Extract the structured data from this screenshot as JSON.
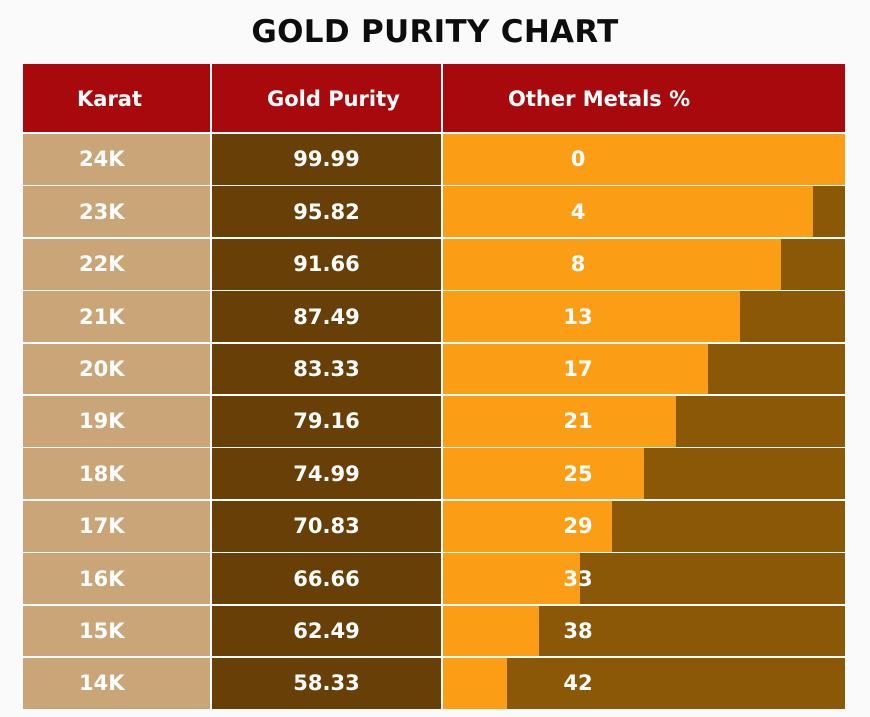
{
  "title": "GOLD PURITY CHART",
  "columns": [
    "Karat",
    "Gold Purity",
    "Other Metals %"
  ],
  "colors": {
    "header": "#a8090d",
    "karat_cell": "#caa577",
    "purity_cell": "#683f06",
    "other_bar": "#fc9e15",
    "other_track": "#8a5806",
    "text": "#ffffff"
  },
  "chart_data": {
    "type": "table",
    "title": "GOLD PURITY CHART",
    "columns": [
      "Karat",
      "Gold Purity",
      "Other Metals %"
    ],
    "rows": [
      {
        "karat": "24K",
        "purity": "99.99",
        "other": "0"
      },
      {
        "karat": "23K",
        "purity": "95.82",
        "other": "4"
      },
      {
        "karat": "22K",
        "purity": "91.66",
        "other": "8"
      },
      {
        "karat": "21K",
        "purity": "87.49",
        "other": "13"
      },
      {
        "karat": "20K",
        "purity": "83.33",
        "other": "17"
      },
      {
        "karat": "19K",
        "purity": "79.16",
        "other": "21"
      },
      {
        "karat": "18K",
        "purity": "74.99",
        "other": "25"
      },
      {
        "karat": "17K",
        "purity": "70.83",
        "other": "29"
      },
      {
        "karat": "16K",
        "purity": "66.66",
        "other": "33"
      },
      {
        "karat": "15K",
        "purity": "62.49",
        "other": "38"
      },
      {
        "karat": "14K",
        "purity": "58.33",
        "other": "42"
      }
    ]
  }
}
